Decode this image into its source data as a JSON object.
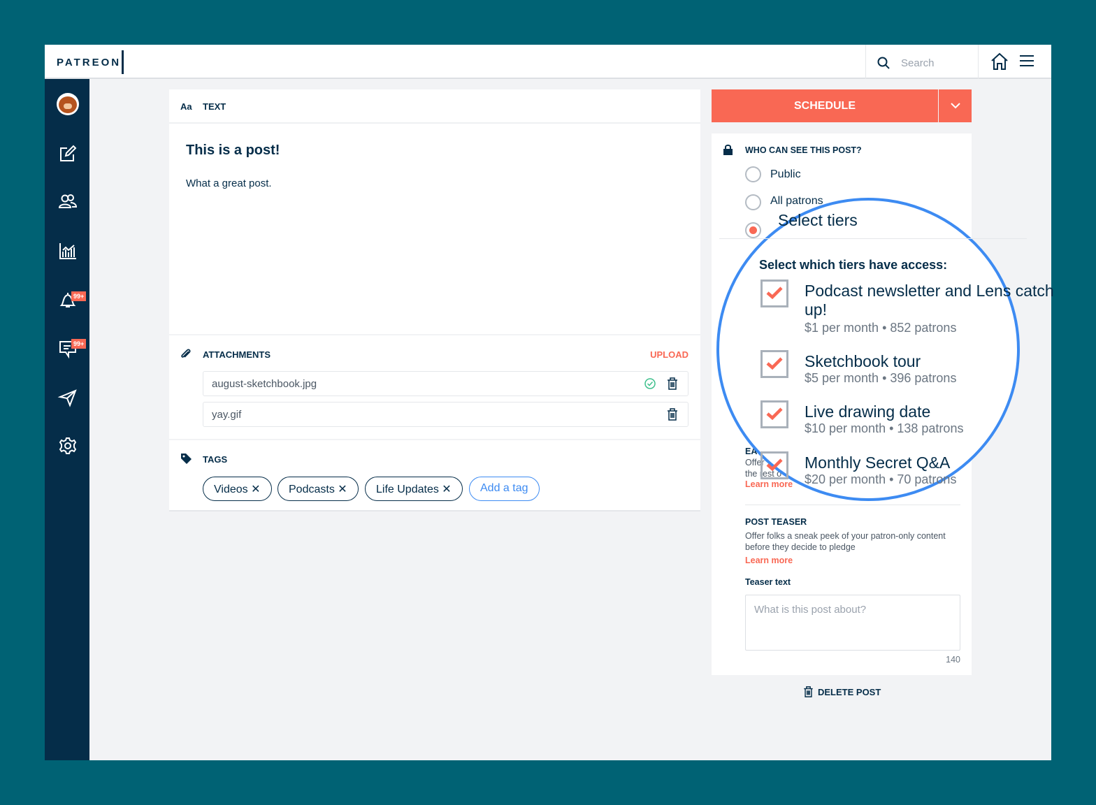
{
  "header": {
    "logo": "PATREON",
    "search_placeholder": "Search"
  },
  "sidebar": {
    "badges": {
      "notifications": "99+",
      "messages": "99+"
    }
  },
  "editor": {
    "type_icon": "Aa",
    "type_label": "TEXT",
    "title": "This is a post!",
    "body": "What a great post."
  },
  "attachments": {
    "label": "ATTACHMENTS",
    "upload": "UPLOAD",
    "files": [
      {
        "name": "august-sketchbook.jpg",
        "status": "uploaded"
      },
      {
        "name": "yay.gif"
      }
    ]
  },
  "tags": {
    "label": "TAGS",
    "items": [
      "Videos",
      "Podcasts",
      "Life Updates"
    ],
    "add": "Add a tag"
  },
  "schedule": {
    "label": "SCHEDULE"
  },
  "visibility": {
    "heading": "WHO CAN SEE THIS POST?",
    "options": [
      "Public",
      "All patrons",
      "Select tiers"
    ],
    "selected": "Select tiers",
    "tiers_heading": "Select which tiers have access:",
    "tiers": [
      {
        "title": "Podcast newsletter and Lens catch up!",
        "meta": "$1 per month • 852 patrons",
        "checked": true
      },
      {
        "title": "Sketchbook tour",
        "meta": "$5 per month • 396 patrons",
        "checked": true
      },
      {
        "title": "Live drawing date",
        "meta": "$10 per month • 138 patrons",
        "checked": true
      },
      {
        "title": "Monthly Secret Q&A",
        "meta": "$20 per month • 70 patrons",
        "checked": true
      }
    ]
  },
  "early_access": {
    "heading": "EA",
    "line1": "Offer",
    "line2": "the rest o",
    "learn": "Learn more"
  },
  "teaser": {
    "heading": "POST TEASER",
    "desc": "Offer folks a sneak peek of your patron-only content before they decide to pledge",
    "learn": "Learn more",
    "field_label": "Teaser text",
    "placeholder": "What is this post about?",
    "count": "140"
  },
  "delete": {
    "label": "DELETE POST"
  },
  "colors": {
    "accent": "#F96854",
    "navy": "#052D49",
    "magnifier": "#3D8BF2",
    "background": "#006274"
  }
}
